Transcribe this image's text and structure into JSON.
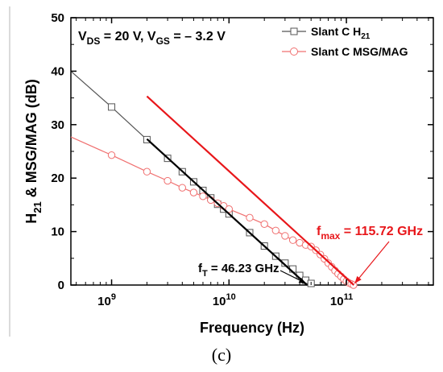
{
  "chart_data": {
    "type": "line",
    "x_scale": "log",
    "xlim": [
      450000000,
      550000000000
    ],
    "ylim": [
      0,
      50
    ],
    "xlabel": "Frequency (Hz)",
    "ylabel": "H21 & MSG/MAG (dB)",
    "x_ticks": [
      {
        "value": 1000000000,
        "base": "10",
        "exp": "9"
      },
      {
        "value": 10000000000,
        "base": "10",
        "exp": "10"
      },
      {
        "value": 100000000000,
        "base": "10",
        "exp": "11"
      }
    ],
    "y_ticks": [
      0,
      10,
      20,
      30,
      40,
      50
    ],
    "grid": false,
    "legend_position": "top-right",
    "bias_label": {
      "v1": "V",
      "s1": "DS",
      "m1": " = 20 V, ",
      "v2": "V",
      "s2": "GS",
      "m2": " = – 3.2 V"
    },
    "series": [
      {
        "name": "Slant C H21",
        "legend": {
          "text": "Slant C H",
          "sub": "21"
        },
        "color": "#555555",
        "marker": "square",
        "x": [
          450000000,
          1000000000,
          2000000000,
          3000000000,
          4000000000,
          5000000000,
          6000000000,
          7000000000,
          8000000000,
          9000000000,
          10000000000,
          15000000000,
          20000000000,
          25000000000,
          30000000000,
          35000000000,
          40000000000,
          45000000000,
          50000000000
        ],
        "y": [
          40.0,
          33.3,
          27.2,
          23.7,
          21.2,
          19.3,
          17.7,
          16.3,
          15.1,
          14.2,
          13.3,
          9.8,
          7.3,
          5.4,
          4.1,
          3.0,
          1.8,
          0.9,
          0.3
        ],
        "marker_indices": [
          1,
          2,
          3,
          4,
          5,
          6,
          7,
          8,
          9,
          10,
          11,
          12,
          13,
          14,
          15,
          16,
          17,
          18
        ]
      },
      {
        "name": "Slant C MSG/MAG",
        "legend": {
          "text": "Slant C MSG/MAG",
          "sub": ""
        },
        "color": "#f07070",
        "marker": "circle",
        "x": [
          450000000,
          1000000000,
          2000000000,
          3000000000,
          4000000000,
          5000000000,
          6000000000,
          7000000000,
          8000000000,
          9000000000,
          10000000000,
          15000000000,
          20000000000,
          25000000000,
          30000000000,
          35000000000,
          40000000000,
          45000000000,
          50000000000,
          55000000000,
          60000000000,
          65000000000,
          70000000000,
          75000000000,
          80000000000,
          85000000000,
          90000000000,
          95000000000,
          100000000000,
          105000000000,
          110000000000,
          115000000000
        ],
        "y": [
          27.7,
          24.3,
          21.2,
          19.5,
          18.2,
          17.3,
          16.6,
          15.9,
          15.3,
          14.8,
          14.2,
          12.6,
          11.4,
          10.2,
          9.2,
          8.4,
          7.9,
          7.5,
          7.2,
          6.5,
          5.7,
          4.9,
          4.1,
          3.4,
          2.7,
          2.1,
          1.6,
          1.1,
          0.7,
          0.4,
          0.2,
          0.0
        ],
        "marker_indices": [
          1,
          2,
          3,
          4,
          5,
          6,
          7,
          8,
          9,
          10,
          11,
          12,
          13,
          14,
          15,
          16,
          17,
          18,
          19,
          20,
          21,
          22,
          23,
          24,
          25,
          26,
          27,
          28,
          29,
          30,
          31
        ]
      }
    ],
    "fit_lines": [
      {
        "color": "#000000",
        "x": [
          2000000000,
          46230000000
        ],
        "y": [
          27.3,
          0
        ]
      },
      {
        "color": "#e8161a",
        "x": [
          2000000000,
          115720000000
        ],
        "y": [
          35.3,
          0
        ]
      }
    ],
    "annotations": [
      {
        "key": "ft",
        "main": "f",
        "sub": "T",
        "rest": " = 46.23 GHz",
        "color": "#000000",
        "arrow_to": [
          46230000000,
          0
        ]
      },
      {
        "key": "fmax",
        "main": "f",
        "sub": "max",
        "rest": " = 115.72 GHz",
        "color": "#e8161a",
        "arrow_to": [
          115720000000,
          0
        ]
      }
    ],
    "panel_label": "(c)"
  }
}
